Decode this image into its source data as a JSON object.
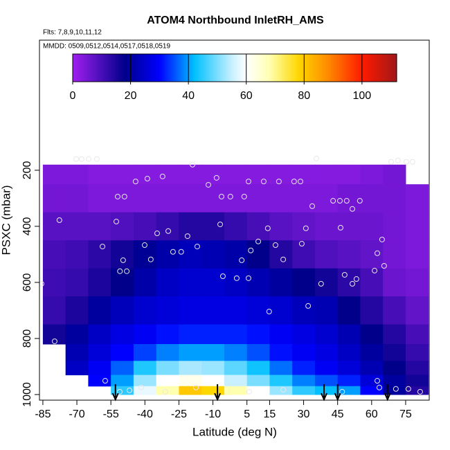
{
  "chart_data": {
    "type": "heatmap",
    "title": "ATOM4 Northbound InletRH_AMS",
    "subtitle": "Flts: 7,8,9,10,11,12",
    "annotation": "MMDD: 0509,0512,0514,0517,0518,0519",
    "xlabel": "Latitude (deg N)",
    "ylabel": "PSXC (mbar)",
    "xlim": [
      -86.5,
      85.4
    ],
    "ylim": [
      -264,
      1020
    ],
    "xticks": [
      -85,
      -70,
      -55,
      -40,
      -25,
      -10,
      5,
      15,
      30,
      45,
      60,
      75
    ],
    "yticks": [
      200,
      400,
      600,
      800,
      1000
    ],
    "x_bins": [
      -85,
      -75,
      -65,
      -55,
      -45,
      -35,
      -25,
      -15,
      -5,
      5,
      15,
      25,
      35,
      45,
      55,
      65,
      75,
      85
    ],
    "y_bins": [
      180,
      250,
      350,
      450,
      550,
      650,
      750,
      820,
      880,
      930,
      970,
      1000
    ],
    "values": [
      [
        4,
        4,
        3,
        3,
        3,
        3,
        3,
        3,
        3,
        3,
        3,
        3,
        3,
        3,
        4,
        5,
        null
      ],
      [
        5,
        5,
        4,
        4,
        4,
        4,
        4,
        4,
        4,
        4,
        4,
        4,
        4,
        5,
        5,
        5,
        4
      ],
      [
        8,
        8,
        8,
        9,
        10,
        12,
        14,
        14,
        12,
        10,
        8,
        7,
        6,
        6,
        6,
        5,
        4
      ],
      [
        10,
        11,
        13,
        16,
        19,
        21,
        23,
        22,
        21,
        18,
        14,
        11,
        9,
        8,
        7,
        5,
        4
      ],
      [
        11,
        12,
        15,
        18,
        21,
        24,
        25,
        25,
        24,
        22,
        20,
        18,
        16,
        13,
        10,
        6,
        5
      ],
      [
        12,
        15,
        20,
        23,
        25,
        26,
        27,
        27,
        27,
        26,
        25,
        23,
        22,
        18,
        14,
        10,
        7
      ],
      [
        16,
        20,
        24,
        27,
        29,
        31,
        32,
        32,
        32,
        31,
        29,
        27,
        25,
        22,
        18,
        14,
        10
      ],
      [
        null,
        22,
        26,
        30,
        34,
        38,
        40,
        40,
        38,
        35,
        31,
        29,
        27,
        24,
        20,
        16,
        12
      ],
      [
        null,
        24,
        29,
        36,
        44,
        50,
        53,
        52,
        48,
        43,
        37,
        32,
        29,
        26,
        22,
        18,
        14
      ],
      [
        null,
        null,
        30,
        40,
        52,
        60,
        62,
        60,
        55,
        50,
        44,
        38,
        35,
        32,
        26,
        20,
        16
      ],
      [
        null,
        null,
        null,
        45,
        58,
        68,
        80,
        78,
        68,
        60,
        52,
        45,
        42,
        40,
        30,
        20,
        14
      ]
    ],
    "colorbar_lim": [
      0,
      112
    ],
    "colorbar_ticks": [
      0,
      20,
      40,
      60,
      80,
      100
    ],
    "colorscale": [
      [
        0,
        "#a020f0"
      ],
      [
        18,
        "#00008b"
      ],
      [
        30,
        "#0000ff"
      ],
      [
        42,
        "#00bfff"
      ],
      [
        55,
        "#c8f0ff"
      ],
      [
        60,
        "#ffffff"
      ],
      [
        68,
        "#ffffb0"
      ],
      [
        78,
        "#ffd700"
      ],
      [
        88,
        "#ff8c00"
      ],
      [
        100,
        "#ff1a00"
      ],
      [
        112,
        "#a01818"
      ]
    ],
    "points": {
      "lat": [
        -70.3,
        -67.9,
        -64.8,
        -61.2,
        35.6,
        -19,
        -32.2,
        -38.9,
        -44.1,
        -12,
        -8.4,
        5.7,
        12.4,
        19.1,
        25.8,
        28.6,
        -52,
        -49,
        -6.2,
        -2.3,
        3.8,
        33.8,
        43,
        46,
        49,
        51.5,
        54.8,
        -52.6,
        -77.7,
        -6.8,
        31,
        14.2,
        -34.6,
        -29.7,
        -21.2,
        -40.1,
        -58.7,
        -16.9,
        10,
        17.6,
        29.2,
        46.3,
        -27.6,
        -24,
        -49.6,
        -37.4,
        2.7,
        6.7,
        21,
        64.6,
        62.5,
        65.5,
        -51,
        -48,
        -5.6,
        0.5,
        5.7,
        48.1,
        53.3,
        61.3,
        37.7,
        51.5,
        -85.6,
        32,
        14.8,
        -79.8,
        -57.5,
        -51.1,
        -46.8,
        -41.6,
        -31,
        -17.5,
        6,
        21,
        47,
        62.5,
        63.4,
        70.7,
        76.2,
        81.4,
        68.6,
        71.6,
        75.3,
        78
      ],
      "pressure": [
        160,
        160,
        160,
        160,
        158,
        180,
        222,
        230,
        240,
        252,
        227,
        240,
        240,
        240,
        240,
        240,
        294,
        294,
        294,
        294,
        294,
        328,
        309,
        309,
        309,
        338,
        309,
        383,
        378,
        393,
        407,
        407,
        425,
        417,
        435,
        467,
        472,
        472,
        454,
        467,
        462,
        405,
        491,
        491,
        521,
        518,
        521,
        486,
        518,
        447,
        496,
        541,
        560,
        560,
        578,
        585,
        585,
        573,
        588,
        558,
        605,
        605,
        605,
        684,
        704,
        810,
        951,
        990,
        985,
        975,
        990,
        975,
        990,
        983,
        990,
        951,
        975,
        980,
        980,
        990,
        170,
        165,
        170,
        170
      ]
    },
    "arrow_lats": [
      -53,
      -8,
      39,
      45,
      67
    ]
  }
}
